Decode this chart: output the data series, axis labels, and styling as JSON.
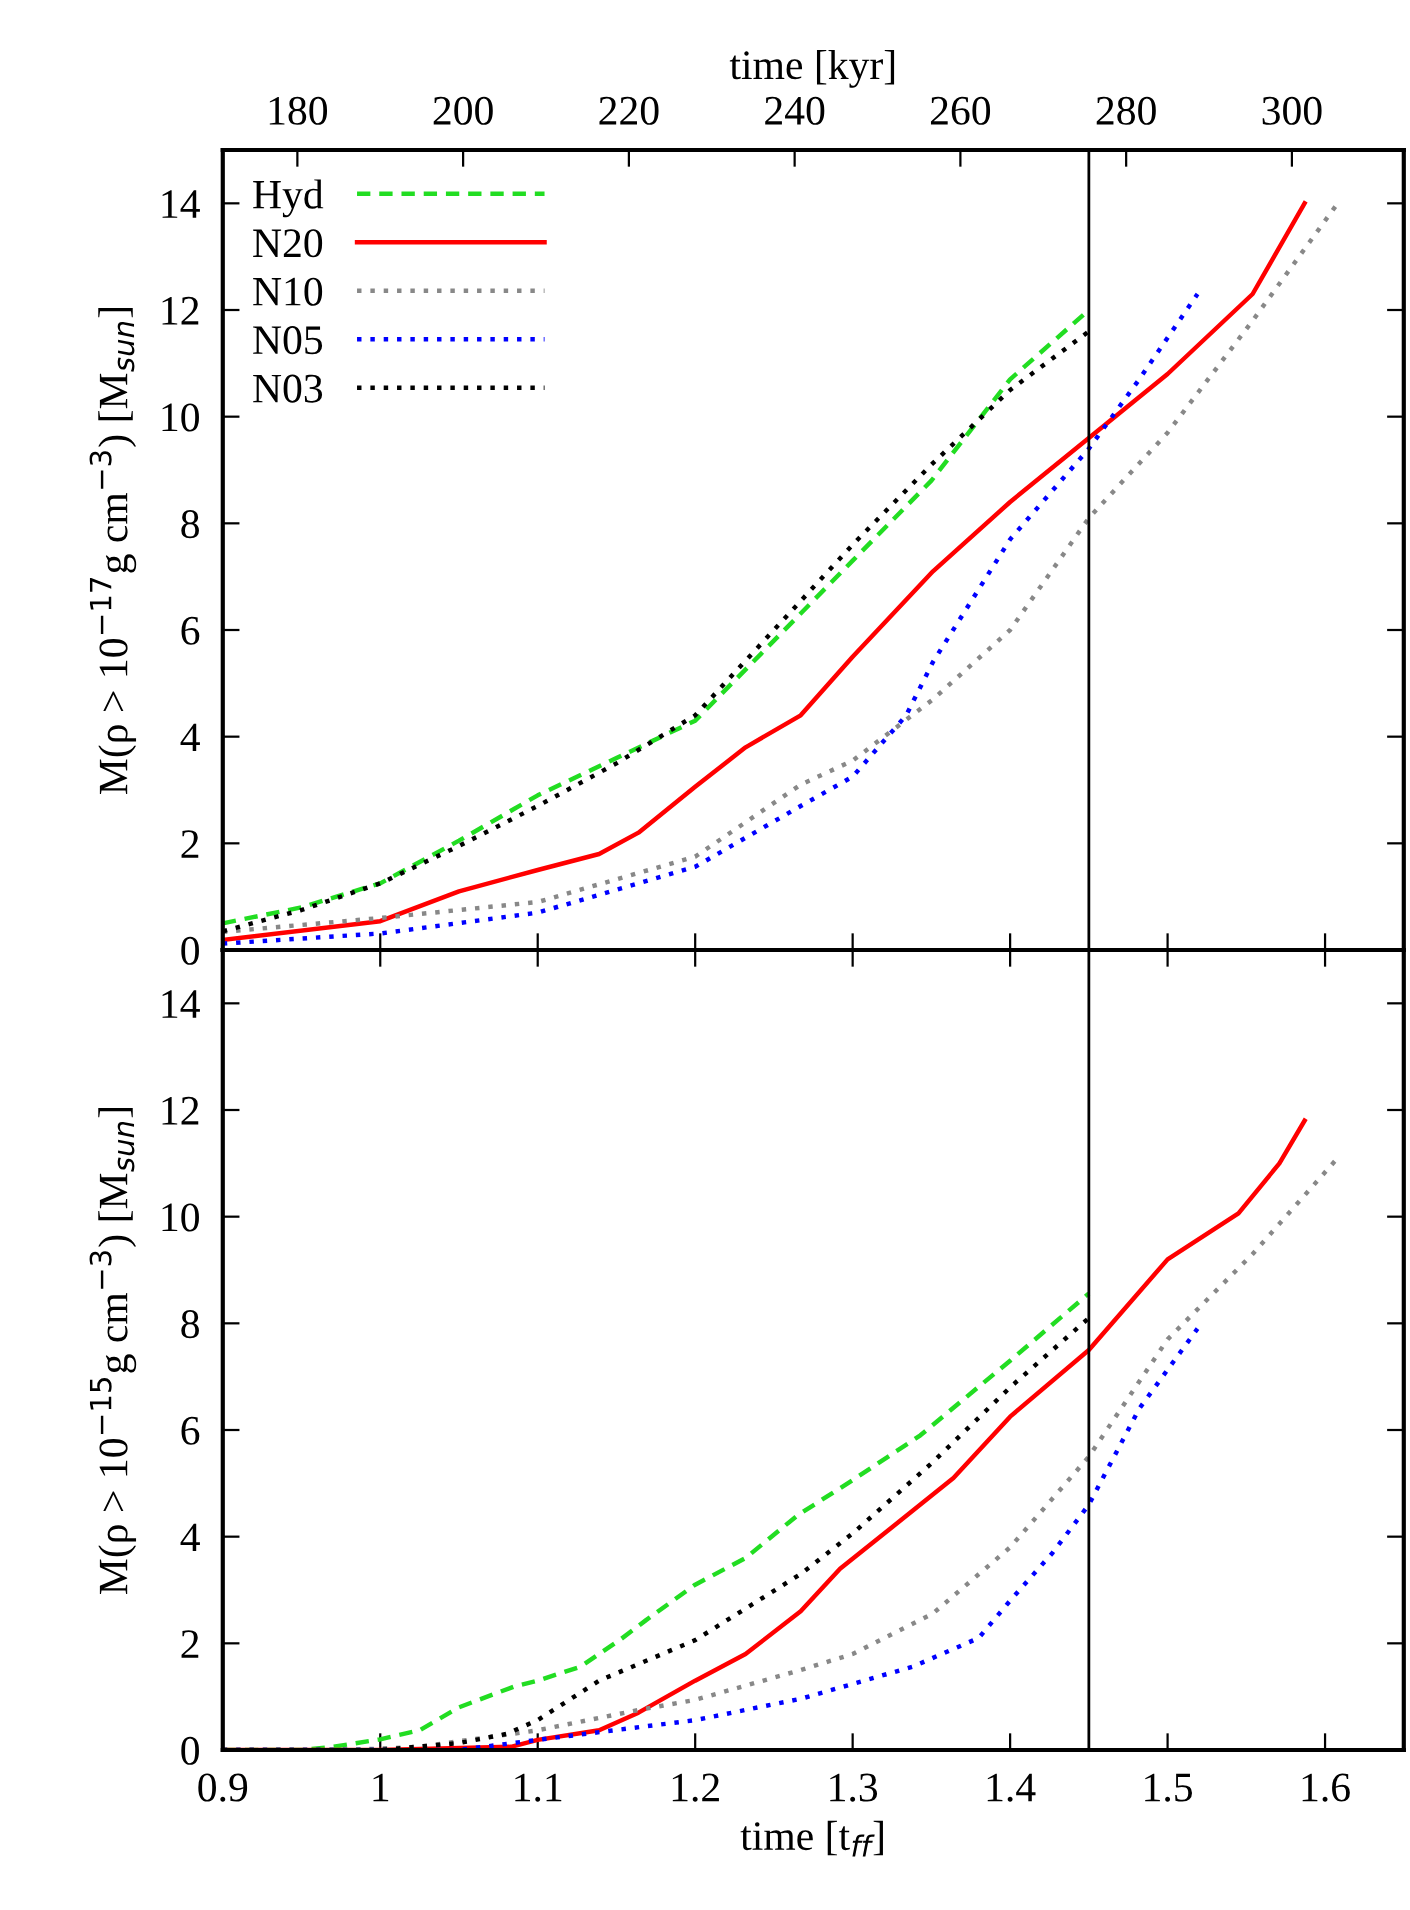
{
  "chart_data": [
    {
      "type": "line",
      "x2label": "time [kyr]",
      "ylabel": "M(ρ > 10$^{−17}$g cm$^{−3}$) [M$_{sun}$]",
      "xlim": [
        0.9,
        1.65
      ],
      "xticks": [
        0.9,
        1,
        1.1,
        1.2,
        1.3,
        1.4,
        1.5,
        1.6
      ],
      "x2lim": [
        171,
        313.5
      ],
      "x2ticks": [
        180,
        200,
        220,
        240,
        260,
        280,
        300
      ],
      "ylim": [
        0,
        15
      ],
      "yticks": [
        0,
        2,
        4,
        6,
        8,
        10,
        12,
        14
      ],
      "tick_labels": "y",
      "legend": "top left",
      "grid": false,
      "ref_lines": [
        {
          "axis": "x",
          "value": 1.45,
          "color": "#000000",
          "line_style": "solid"
        }
      ],
      "series": [
        {
          "name": "Hyd",
          "color": "#22dd22",
          "line_style": "dashed",
          "x": [
            0.9,
            0.95,
            1.0,
            1.05,
            1.1,
            1.15,
            1.2,
            1.25,
            1.3,
            1.35,
            1.4,
            1.45
          ],
          "values": [
            0.5,
            0.8,
            1.25,
            2.05,
            2.9,
            3.6,
            4.3,
            5.8,
            7.3,
            8.8,
            10.7,
            12.0
          ]
        },
        {
          "name": "N20",
          "color": "#ff0000",
          "line_style": "solid",
          "x": [
            0.9,
            1.0,
            1.05,
            1.1,
            1.139,
            1.164,
            1.2,
            1.232,
            1.267,
            1.3,
            1.351,
            1.4,
            1.45,
            1.5,
            1.554,
            1.587
          ],
          "values": [
            0.19,
            0.54,
            1.1,
            1.5,
            1.8,
            2.2,
            3.06,
            3.8,
            4.4,
            5.5,
            7.1,
            8.4,
            9.6,
            10.8,
            12.3,
            14.0
          ]
        },
        {
          "name": "N10",
          "color": "#888888",
          "line_style": "dotted",
          "x": [
            0.9,
            1.0,
            1.1,
            1.2,
            1.267,
            1.3,
            1.351,
            1.4,
            1.45,
            1.5,
            1.554,
            1.608
          ],
          "values": [
            0.34,
            0.6,
            0.9,
            1.75,
            3.1,
            3.55,
            4.7,
            6.0,
            8.1,
            9.7,
            11.8,
            14.0
          ]
        },
        {
          "name": "N05",
          "color": "#0000ff",
          "line_style": "dotted",
          "x": [
            0.9,
            1.0,
            1.1,
            1.2,
            1.267,
            1.3,
            1.334,
            1.351,
            1.4,
            1.45,
            1.482,
            1.519
          ],
          "values": [
            0.12,
            0.31,
            0.7,
            1.56,
            2.7,
            3.25,
            4.4,
            5.4,
            7.7,
            9.4,
            10.7,
            12.3
          ]
        },
        {
          "name": "N03",
          "color": "#000000",
          "line_style": "dotted",
          "x": [
            0.9,
            0.95,
            1.0,
            1.05,
            1.1,
            1.15,
            1.2,
            1.25,
            1.3,
            1.35,
            1.4,
            1.45
          ],
          "values": [
            0.35,
            0.75,
            1.25,
            1.95,
            2.7,
            3.5,
            4.4,
            6.0,
            7.6,
            9.1,
            10.5,
            11.6
          ]
        }
      ]
    },
    {
      "type": "line",
      "xlabel": "time [t$_{ff}$]",
      "ylabel": "M(ρ > 10$^{−15}$g cm$^{−3}$) [M$_{sun}$]",
      "xlim": [
        0.9,
        1.65
      ],
      "xticks": [
        0.9,
        1,
        1.1,
        1.2,
        1.3,
        1.4,
        1.5,
        1.6
      ],
      "ylim": [
        0,
        15
      ],
      "yticks": [
        0,
        2,
        4,
        6,
        8,
        10,
        12,
        14
      ],
      "grid": false,
      "ref_lines": [
        {
          "axis": "x",
          "value": 1.45,
          "color": "#000000",
          "line_style": "solid"
        }
      ],
      "series": [
        {
          "color": "#22dd22",
          "line_style": "dashed",
          "x": [
            0.9,
            0.95,
            0.97,
            1.0,
            1.025,
            1.05,
            1.085,
            1.1,
            1.127,
            1.152,
            1.169,
            1.2,
            1.232,
            1.265,
            1.3,
            1.343,
            1.4,
            1.45
          ],
          "values": [
            0,
            0,
            0.06,
            0.2,
            0.37,
            0.8,
            1.19,
            1.3,
            1.56,
            2.06,
            2.44,
            3.1,
            3.6,
            4.4,
            5.06,
            5.9,
            7.3,
            8.56
          ]
        },
        {
          "color": "#ff0000",
          "line_style": "solid",
          "x": [
            0.9,
            1.0,
            1.083,
            1.1,
            1.139,
            1.164,
            1.2,
            1.232,
            1.267,
            1.292,
            1.326,
            1.364,
            1.4,
            1.45,
            1.5,
            1.545,
            1.571,
            1.587
          ],
          "values": [
            0,
            0,
            0.06,
            0.19,
            0.37,
            0.7,
            1.3,
            1.8,
            2.6,
            3.4,
            4.2,
            5.1,
            6.25,
            7.5,
            9.2,
            10.06,
            11.0,
            11.8
          ]
        },
        {
          "color": "#888888",
          "line_style": "dotted",
          "x": [
            0.9,
            0.98,
            1.025,
            1.1,
            1.164,
            1.2,
            1.267,
            1.3,
            1.351,
            1.4,
            1.45,
            1.5,
            1.554,
            1.608
          ],
          "values": [
            0,
            0,
            0.06,
            0.37,
            0.75,
            0.94,
            1.5,
            1.8,
            2.56,
            3.8,
            5.5,
            7.7,
            9.3,
            11.1
          ]
        },
        {
          "color": "#0000ff",
          "line_style": "dotted",
          "x": [
            0.9,
            1.05,
            1.1,
            1.2,
            1.267,
            1.338,
            1.38,
            1.4,
            1.427,
            1.45,
            1.482,
            1.519
          ],
          "values": [
            0,
            0,
            0.19,
            0.56,
            0.96,
            1.56,
            2.1,
            2.8,
            3.7,
            4.6,
            6.4,
            7.9
          ]
        },
        {
          "color": "#000000",
          "line_style": "dotted",
          "x": [
            0.9,
            1.0,
            1.05,
            1.08,
            1.1,
            1.139,
            1.2,
            1.267,
            1.3,
            1.351,
            1.4,
            1.45
          ],
          "values": [
            0,
            0,
            0.13,
            0.3,
            0.56,
            1.3,
            2.06,
            3.3,
            4.06,
            5.4,
            6.8,
            8.1
          ]
        }
      ]
    }
  ]
}
